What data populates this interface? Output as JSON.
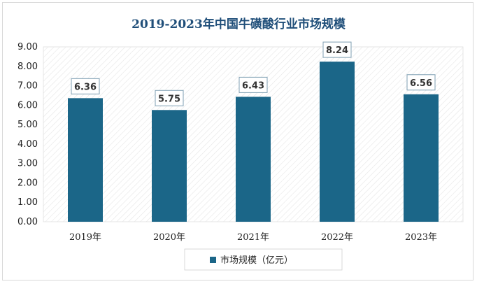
{
  "chart_data": {
    "type": "bar",
    "title": "2019-2023年中国牛磺酸行业市场规模",
    "categories": [
      "2019年",
      "2020年",
      "2021年",
      "2022年",
      "2023年"
    ],
    "series": [
      {
        "name": "市场规模（亿元）",
        "values": [
          6.36,
          5.75,
          6.43,
          8.24,
          6.56
        ]
      }
    ],
    "data_labels": [
      "6.36",
      "5.75",
      "6.43",
      "8.24",
      "6.56"
    ],
    "ylim": [
      0,
      9
    ],
    "yticks": [
      "0.00",
      "1.00",
      "2.00",
      "3.00",
      "4.00",
      "5.00",
      "6.00",
      "7.00",
      "8.00",
      "9.00"
    ],
    "ytick_values": [
      0,
      1,
      2,
      3,
      4,
      5,
      6,
      7,
      8,
      9
    ],
    "grid": false,
    "legend_position": "bottom",
    "colors": {
      "bar": "#1b6688",
      "label_border": "#7f9fb3",
      "title": "#1f4e79"
    }
  }
}
